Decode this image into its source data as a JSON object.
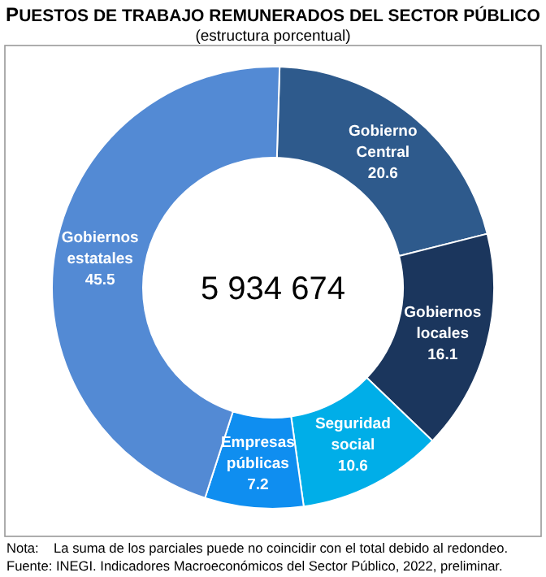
{
  "chart_data": {
    "type": "donut",
    "title": "PUESTOS DE TRABAJO REMUNERADOS DEL SECTOR PÚBLICO",
    "subtitle": "(estructura porcentual)",
    "categories": [
      "Gobierno Central",
      "Gobiernos locales",
      "Seguridad social",
      "Empresas públicas",
      "Gobiernos estatales"
    ],
    "values": [
      20.6,
      16.1,
      10.6,
      7.2,
      45.5
    ],
    "colors": [
      "#2e5a8c",
      "#1b365d",
      "#00aee8",
      "#0f8ef0",
      "#538ad4"
    ],
    "data_labels": true,
    "annotations": [
      "5 934 674",
      "Nota:    La suma de los parciales puede no coincidir con el total debido al redondeo.",
      "Fuente: INEGI. Indicadores Macroeconómicos del Sector Público, 2022, preliminar."
    ]
  }
}
